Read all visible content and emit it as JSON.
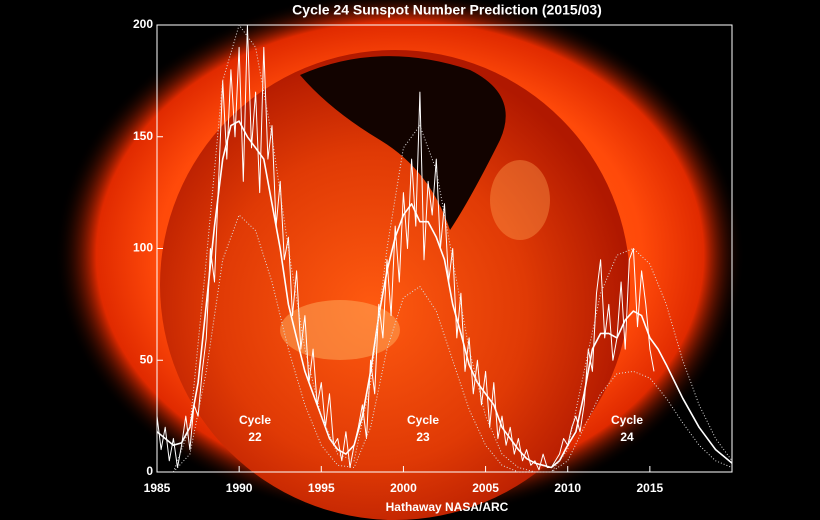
{
  "chart_data": {
    "type": "line",
    "title": "Cycle 24 Sunspot Number Prediction (2015/03)",
    "footer": "Hathaway  NASA/ARC",
    "annotations": [
      {
        "lines": [
          "Cycle",
          "22"
        ]
      },
      {
        "lines": [
          "Cycle",
          "23"
        ]
      },
      {
        "lines": [
          "Cycle",
          "24"
        ]
      }
    ],
    "xlim": [
      1985,
      2020
    ],
    "xticks": [
      1985,
      1990,
      1995,
      2000,
      2005,
      2010,
      2015
    ],
    "ylim": [
      0,
      200
    ],
    "yticks": [
      0,
      50,
      100,
      150,
      200
    ],
    "series": [
      {
        "color": "#ffffff",
        "style": "solid",
        "width": 1,
        "x": [
          1985,
          1985.25,
          1985.5,
          1985.75,
          1986,
          1986.25,
          1986.5,
          1986.75,
          1987,
          1987.25,
          1987.5,
          1987.75,
          1988,
          1988.25,
          1988.5,
          1988.75,
          1989,
          1989.25,
          1989.5,
          1989.75,
          1990,
          1990.25,
          1990.5,
          1990.75,
          1991,
          1991.25,
          1991.5,
          1991.75,
          1992,
          1992.25,
          1992.5,
          1992.75,
          1993,
          1993.25,
          1993.5,
          1993.75,
          1994,
          1994.25,
          1994.5,
          1994.75,
          1995,
          1995.25,
          1995.5,
          1995.75,
          1996,
          1996.25,
          1996.5,
          1996.75,
          1997,
          1997.25,
          1997.5,
          1997.75,
          1998,
          1998.25,
          1998.5,
          1998.75,
          1999,
          1999.25,
          1999.5,
          1999.75,
          2000,
          2000.25,
          2000.5,
          2000.75,
          2001,
          2001.25,
          2001.5,
          2001.75,
          2002,
          2002.25,
          2002.5,
          2002.75,
          2003,
          2003.25,
          2003.5,
          2003.75,
          2004,
          2004.25,
          2004.5,
          2004.75,
          2005,
          2005.25,
          2005.5,
          2005.75,
          2006,
          2006.25,
          2006.5,
          2006.75,
          2007,
          2007.25,
          2007.5,
          2007.75,
          2008,
          2008.25,
          2008.5,
          2008.75,
          2009,
          2009.25,
          2009.5,
          2009.75,
          2010,
          2010.25,
          2010.5,
          2010.75,
          2011,
          2011.25,
          2011.5,
          2011.75,
          2012,
          2012.25,
          2012.5,
          2012.75,
          2013,
          2013.25,
          2013.5,
          2013.75,
          2014,
          2014.25,
          2014.5,
          2014.75,
          2015,
          2015.25
        ],
        "values": [
          25,
          10,
          20,
          5,
          15,
          2,
          12,
          25,
          10,
          30,
          25,
          45,
          60,
          100,
          85,
          130,
          175,
          140,
          180,
          150,
          190,
          130,
          200,
          145,
          170,
          125,
          190,
          140,
          155,
          110,
          130,
          95,
          105,
          70,
          90,
          55,
          70,
          40,
          55,
          30,
          40,
          20,
          35,
          12,
          15,
          5,
          18,
          2,
          12,
          20,
          30,
          15,
          50,
          35,
          75,
          60,
          95,
          70,
          110,
          85,
          125,
          100,
          140,
          110,
          170,
          95,
          130,
          115,
          140,
          100,
          120,
          85,
          100,
          60,
          80,
          45,
          60,
          35,
          50,
          30,
          45,
          20,
          40,
          15,
          25,
          12,
          20,
          8,
          15,
          5,
          10,
          3,
          5,
          1,
          8,
          2,
          2,
          5,
          8,
          15,
          12,
          20,
          25,
          18,
          30,
          55,
          45,
          80,
          95,
          60,
          75,
          50,
          60,
          85,
          55,
          95,
          100,
          65,
          90,
          75,
          55,
          45
        ]
      },
      {
        "color": "#ffffff",
        "style": "solid",
        "width": 1.6,
        "x": [
          1985,
          1985.5,
          1986,
          1986.5,
          1987,
          1987.5,
          1988,
          1988.5,
          1989,
          1989.5,
          1990,
          1990.5,
          1991,
          1991.5,
          1992,
          1992.5,
          1993,
          1993.5,
          1994,
          1994.5,
          1995,
          1995.5,
          1996,
          1996.5,
          1997,
          1997.5,
          1998,
          1998.5,
          1999,
          1999.5,
          2000,
          2000.5,
          2001,
          2001.5,
          2002,
          2002.5,
          2003,
          2003.5,
          2004,
          2004.5,
          2005,
          2005.5,
          2006,
          2006.5,
          2007,
          2007.5,
          2008,
          2008.5,
          2009,
          2009.5,
          2010,
          2010.5,
          2011,
          2011.5,
          2012,
          2012.5,
          2013,
          2013.5,
          2014,
          2014.5,
          2015,
          2015.5,
          2016,
          2017,
          2018,
          2019,
          2020
        ],
        "values": [
          18,
          15,
          12,
          13,
          20,
          40,
          75,
          110,
          140,
          155,
          157,
          150,
          145,
          140,
          120,
          100,
          75,
          60,
          45,
          35,
          25,
          15,
          10,
          8,
          12,
          25,
          45,
          70,
          90,
          105,
          115,
          120,
          112,
          112,
          105,
          95,
          75,
          62,
          48,
          40,
          35,
          30,
          20,
          15,
          10,
          6,
          4,
          3,
          2,
          5,
          12,
          18,
          35,
          55,
          62,
          62,
          60,
          68,
          72,
          70,
          60,
          55,
          48,
          33,
          20,
          10,
          4
        ]
      },
      {
        "color": "#dddddd",
        "style": "dotted",
        "width": 1,
        "x": [
          1986,
          1987,
          1988,
          1989,
          1990,
          1991,
          1992,
          1993,
          1994,
          1995,
          1996,
          1997,
          1998,
          1999,
          2000,
          2001,
          2002,
          2003,
          2004,
          2005,
          2006,
          2007,
          2008,
          2009,
          2010,
          2011,
          2012,
          2013,
          2014,
          2015,
          2016,
          2017,
          2018,
          2019,
          2020
        ],
        "values": [
          0,
          20,
          95,
          175,
          200,
          190,
          150,
          100,
          55,
          25,
          8,
          5,
          40,
          100,
          145,
          155,
          135,
          95,
          55,
          25,
          8,
          2,
          0,
          0,
          10,
          45,
          80,
          97,
          100,
          93,
          75,
          50,
          30,
          15,
          5
        ]
      },
      {
        "color": "#dddddd",
        "style": "dotted",
        "width": 1,
        "x": [
          1986,
          1987,
          1988,
          1989,
          1990,
          1991,
          1992,
          1993,
          1994,
          1995,
          1996,
          1997,
          1998,
          1999,
          2000,
          2001,
          2002,
          2003,
          2004,
          2005,
          2006,
          2007,
          2008,
          2009,
          2010,
          2011,
          2012,
          2013,
          2014,
          2015,
          2016,
          2017,
          2018,
          2019,
          2020
        ],
        "values": [
          0,
          8,
          45,
          95,
          115,
          108,
          85,
          55,
          30,
          12,
          3,
          2,
          20,
          55,
          78,
          83,
          72,
          50,
          28,
          12,
          3,
          0,
          0,
          0,
          5,
          20,
          35,
          44,
          45,
          42,
          33,
          22,
          12,
          5,
          2
        ]
      }
    ]
  }
}
